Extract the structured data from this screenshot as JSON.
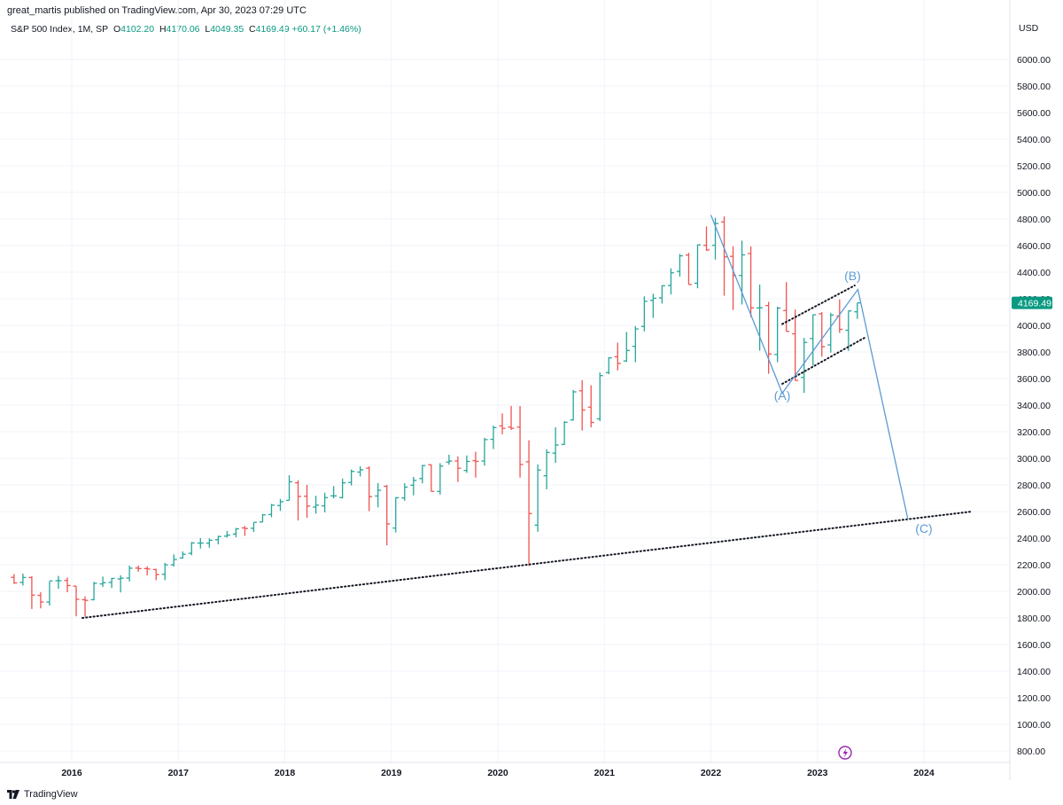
{
  "header": {
    "publisher": "great_martis published on TradingView.com, Apr 30, 2023 07:29 UTC"
  },
  "legend": {
    "symbol": "S&P 500 Index, 1M, SP",
    "o_label": "O",
    "o": "4102.20",
    "h_label": "H",
    "h": "4170.06",
    "l_label": "L",
    "l": "4049.35",
    "c_label": "C",
    "c": "4169.49",
    "change": "+60.17 (+1.46%)"
  },
  "footer": {
    "brand": "TradingView"
  },
  "colors": {
    "up": "#26a69a",
    "down": "#ef5350",
    "wave": "#5b9bd5",
    "price_tag": "#089981",
    "grid": "#f0f3fa"
  },
  "chart_data": {
    "type": "ohlc",
    "title": "S&P 500 Index, 1M, SP",
    "currency": "USD",
    "ylim": [
      700,
      6200
    ],
    "xlim": [
      2015.35,
      2024.85
    ],
    "y_ticks": [
      "800.00",
      "1000.00",
      "1200.00",
      "1400.00",
      "1600.00",
      "1800.00",
      "2000.00",
      "2200.00",
      "2400.00",
      "2600.00",
      "2800.00",
      "3000.00",
      "3200.00",
      "3400.00",
      "3600.00",
      "3800.00",
      "4000.00",
      "4200.00",
      "4400.00",
      "4600.00",
      "4800.00",
      "5000.00",
      "5200.00",
      "5400.00",
      "5600.00",
      "5800.00",
      "6000.00"
    ],
    "x_ticks": [
      "2016",
      "2017",
      "2018",
      "2019",
      "2020",
      "2021",
      "2022",
      "2023",
      "2024"
    ],
    "last_price": "4169.49",
    "start_date": "2015-06",
    "ohlc": [
      [
        2105,
        2130,
        2056,
        2063
      ],
      [
        2067,
        2133,
        2044,
        2104
      ],
      [
        2104,
        2113,
        1867,
        1972
      ],
      [
        1970,
        1993,
        1872,
        1920
      ],
      [
        1919,
        2076,
        1893,
        2079
      ],
      [
        2080,
        2116,
        2019,
        2080
      ],
      [
        2082,
        2104,
        1993,
        2044
      ],
      [
        2039,
        2039,
        1812,
        1940
      ],
      [
        1937,
        1962,
        1810,
        1932
      ],
      [
        1937,
        2072,
        1932,
        2060
      ],
      [
        2056,
        2111,
        2033,
        2065
      ],
      [
        2067,
        2101,
        2025,
        2097
      ],
      [
        2093,
        2121,
        1992,
        2099
      ],
      [
        2100,
        2194,
        2074,
        2174
      ],
      [
        2175,
        2194,
        2147,
        2171
      ],
      [
        2171,
        2188,
        2120,
        2168
      ],
      [
        2164,
        2169,
        2084,
        2126
      ],
      [
        2128,
        2214,
        2084,
        2199
      ],
      [
        2200,
        2278,
        2187,
        2239
      ],
      [
        2251,
        2300,
        2245,
        2279
      ],
      [
        2286,
        2371,
        2271,
        2364
      ],
      [
        2363,
        2401,
        2322,
        2363
      ],
      [
        2362,
        2398,
        2328,
        2384
      ],
      [
        2388,
        2418,
        2353,
        2412
      ],
      [
        2415,
        2454,
        2405,
        2423
      ],
      [
        2431,
        2477,
        2407,
        2470
      ],
      [
        2477,
        2491,
        2417,
        2472
      ],
      [
        2474,
        2519,
        2446,
        2519
      ],
      [
        2521,
        2582,
        2520,
        2575
      ],
      [
        2578,
        2657,
        2557,
        2648
      ],
      [
        2645,
        2695,
        2605,
        2674
      ],
      [
        2684,
        2873,
        2683,
        2824
      ],
      [
        2816,
        2835,
        2533,
        2714
      ],
      [
        2715,
        2801,
        2553,
        2641
      ],
      [
        2633,
        2718,
        2584,
        2648
      ],
      [
        2643,
        2742,
        2594,
        2705
      ],
      [
        2718,
        2791,
        2699,
        2718
      ],
      [
        2705,
        2848,
        2698,
        2816
      ],
      [
        2819,
        2916,
        2796,
        2902
      ],
      [
        2897,
        2941,
        2864,
        2914
      ],
      [
        2926,
        2940,
        2603,
        2712
      ],
      [
        2717,
        2815,
        2631,
        2760
      ],
      [
        2790,
        2800,
        2346,
        2507
      ],
      [
        2476,
        2708,
        2443,
        2704
      ],
      [
        2702,
        2813,
        2681,
        2784
      ],
      [
        2798,
        2861,
        2722,
        2834
      ],
      [
        2848,
        2950,
        2812,
        2946
      ],
      [
        2952,
        2954,
        2750,
        2752
      ],
      [
        2751,
        2964,
        2728,
        2942
      ],
      [
        2972,
        3028,
        2952,
        2980
      ],
      [
        2980,
        3014,
        2822,
        2926
      ],
      [
        2909,
        3022,
        2891,
        2977
      ],
      [
        2983,
        3050,
        2855,
        2977
      ],
      [
        2980,
        3154,
        2945,
        3141
      ],
      [
        3143,
        3247,
        3070,
        3231
      ],
      [
        3244,
        3338,
        3181,
        3226
      ],
      [
        3235,
        3394,
        3214,
        3226
      ],
      [
        3235,
        3393,
        2855,
        2954
      ],
      [
        2974,
        3136,
        2191,
        2585
      ],
      [
        2498,
        2955,
        2448,
        2912
      ],
      [
        2869,
        3068,
        2767,
        3044
      ],
      [
        3039,
        3233,
        2966,
        3100
      ],
      [
        3105,
        3279,
        3101,
        3271
      ],
      [
        3289,
        3514,
        3284,
        3500
      ],
      [
        3508,
        3588,
        3209,
        3363
      ],
      [
        3385,
        3550,
        3233,
        3270
      ],
      [
        3297,
        3646,
        3280,
        3622
      ],
      [
        3645,
        3761,
        3633,
        3756
      ],
      [
        3764,
        3870,
        3662,
        3714
      ],
      [
        3732,
        3950,
        3725,
        3811
      ],
      [
        3842,
        3995,
        3723,
        3973
      ],
      [
        3992,
        4218,
        3955,
        4181
      ],
      [
        4188,
        4238,
        4056,
        4204
      ],
      [
        4207,
        4302,
        4164,
        4298
      ],
      [
        4300,
        4429,
        4233,
        4395
      ],
      [
        4406,
        4537,
        4367,
        4523
      ],
      [
        4529,
        4546,
        4306,
        4307
      ],
      [
        4317,
        4608,
        4279,
        4605
      ],
      [
        4602,
        4744,
        4560,
        4567
      ],
      [
        4602,
        4809,
        4495,
        4766
      ],
      [
        4778,
        4819,
        4223,
        4515
      ],
      [
        4519,
        4595,
        4115,
        4374
      ],
      [
        4375,
        4637,
        4157,
        4530
      ],
      [
        4540,
        4593,
        4062,
        4132
      ],
      [
        4131,
        4307,
        3810,
        4132
      ],
      [
        4149,
        4177,
        3636,
        3785
      ],
      [
        3781,
        4140,
        3723,
        4130
      ],
      [
        4112,
        4325,
        3955,
        3955
      ],
      [
        3936,
        4119,
        3584,
        3586
      ],
      [
        3609,
        3906,
        3492,
        3872
      ],
      [
        3901,
        4080,
        3698,
        4080
      ],
      [
        4087,
        4100,
        3764,
        3840
      ],
      [
        3853,
        4095,
        3795,
        4077
      ],
      [
        4070,
        4195,
        3943,
        3970
      ],
      [
        3963,
        4110,
        3808,
        4109
      ],
      [
        4102,
        4170,
        4049,
        4169
      ]
    ],
    "annotations": [
      {
        "label": "(A)",
        "x": 2022.67,
        "y": 3440
      },
      {
        "label": "(B)",
        "x": 2023.33,
        "y": 4340
      },
      {
        "label": "(C)",
        "x": 2024.0,
        "y": 2440
      }
    ],
    "wave_path": [
      [
        2022.0,
        4830
      ],
      [
        2022.67,
        3490
      ],
      [
        2023.38,
        4270
      ],
      [
        2023.85,
        2540
      ]
    ],
    "trendlines": [
      {
        "name": "long-term support",
        "from": [
          2016.1,
          1800
        ],
        "to": [
          2024.45,
          2600
        ]
      },
      {
        "name": "wedge upper",
        "from": [
          2022.67,
          4010
        ],
        "to": [
          2023.35,
          4300
        ]
      },
      {
        "name": "wedge lower",
        "from": [
          2022.67,
          3560
        ],
        "to": [
          2023.45,
          3910
        ]
      }
    ]
  }
}
